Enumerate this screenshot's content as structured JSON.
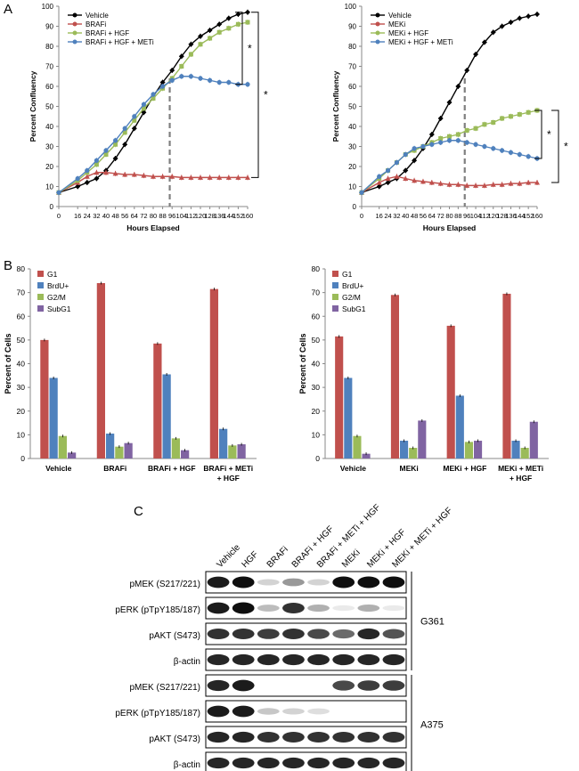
{
  "panels": {
    "a": "A",
    "b": "B",
    "c": "C"
  },
  "colors": {
    "vehicle": "#000000",
    "inhibitor": "#c0504d",
    "inhibitor_hgf": "#9bbb59",
    "triple": "#4f81bd",
    "g1": "#c0504d",
    "brdu": "#4f81bd",
    "g2m": "#9bbb59",
    "subg1": "#8064a2",
    "dash": "#7f7f7f"
  },
  "significance": {
    "marker": "*"
  },
  "chart_data": [
    {
      "type": "line",
      "id": "growth-brafi",
      "xlabel": "Hours Elapsed",
      "ylabel": "Percent Confluency",
      "xlim": [
        0,
        160
      ],
      "ylim": [
        0,
        100
      ],
      "xticks": [
        0,
        16,
        24,
        32,
        40,
        48,
        56,
        64,
        72,
        80,
        88,
        96,
        104,
        112,
        120,
        128,
        136,
        144,
        152,
        160
      ],
      "yticks": [
        0,
        10,
        20,
        30,
        40,
        50,
        60,
        70,
        80,
        90,
        100
      ],
      "xtick_labels": [
        "0",
        "16",
        "24",
        "32",
        "40",
        "48",
        "56",
        "64",
        "72",
        "80",
        "88",
        "96",
        "104",
        "112",
        "120",
        "128",
        "136",
        "144",
        "152",
        "160"
      ],
      "vline_x": 94,
      "series": [
        {
          "name": "Vehicle",
          "key": "vehicle",
          "marker": "diamond",
          "x": [
            0,
            16,
            24,
            32,
            40,
            48,
            56,
            64,
            72,
            80,
            88,
            96,
            104,
            112,
            120,
            128,
            136,
            144,
            152,
            160
          ],
          "y": [
            7,
            10,
            12,
            14,
            18,
            24,
            31,
            39,
            47,
            55,
            62,
            68,
            75,
            81,
            85,
            88,
            91,
            94,
            96,
            97
          ]
        },
        {
          "name": "BRAFi",
          "key": "inhibitor",
          "marker": "triangle",
          "x": [
            0,
            16,
            24,
            32,
            40,
            48,
            56,
            64,
            72,
            80,
            88,
            96,
            104,
            112,
            120,
            128,
            136,
            144,
            152,
            160
          ],
          "y": [
            7,
            12,
            15,
            17,
            17,
            16.5,
            16,
            16,
            15.5,
            15,
            15,
            15,
            14.5,
            14.5,
            14.5,
            14.5,
            14.5,
            14.5,
            14.5,
            14.5
          ]
        },
        {
          "name": "BRAFi + HGF",
          "key": "inhibitor_hgf",
          "marker": "square",
          "x": [
            0,
            16,
            24,
            32,
            40,
            48,
            56,
            64,
            72,
            80,
            88,
            96,
            104,
            112,
            120,
            128,
            136,
            144,
            152,
            160
          ],
          "y": [
            7,
            13,
            17,
            21,
            26,
            31,
            37,
            43,
            49,
            54,
            59,
            64,
            70,
            76,
            81,
            84,
            87,
            89,
            91,
            92
          ]
        },
        {
          "name": "BRAFi + HGF + METi",
          "key": "triple",
          "marker": "circle",
          "x": [
            0,
            16,
            24,
            32,
            40,
            48,
            56,
            64,
            72,
            80,
            88,
            96,
            104,
            112,
            120,
            128,
            136,
            144,
            152,
            160
          ],
          "y": [
            7,
            14,
            18,
            23,
            28,
            33,
            39,
            45,
            51,
            56,
            60,
            63,
            65,
            65,
            64,
            63,
            62,
            62,
            61,
            61
          ]
        }
      ]
    },
    {
      "type": "line",
      "id": "growth-meki",
      "xlabel": "Hours Elapsed",
      "ylabel": "Percent Confluency",
      "xlim": [
        0,
        160
      ],
      "ylim": [
        0,
        100
      ],
      "xticks": [
        0,
        16,
        24,
        32,
        40,
        48,
        56,
        64,
        72,
        80,
        88,
        96,
        104,
        112,
        120,
        128,
        136,
        144,
        152,
        160
      ],
      "yticks": [
        0,
        10,
        20,
        30,
        40,
        50,
        60,
        70,
        80,
        90,
        100
      ],
      "xtick_labels": [
        "0",
        "16",
        "24",
        "32",
        "40",
        "48",
        "56",
        "64",
        "72",
        "80",
        "88",
        "96",
        "104",
        "112",
        "120",
        "128",
        "136",
        "144",
        "152",
        "160"
      ],
      "vline_x": 94,
      "series": [
        {
          "name": "Vehicle",
          "key": "vehicle",
          "marker": "diamond",
          "x": [
            0,
            16,
            24,
            32,
            40,
            48,
            56,
            64,
            72,
            80,
            88,
            96,
            104,
            112,
            120,
            128,
            136,
            144,
            152,
            160
          ],
          "y": [
            7,
            10,
            12,
            14,
            18,
            23,
            29,
            36,
            44,
            52,
            60,
            68,
            76,
            82,
            87,
            90,
            92,
            94,
            95,
            96
          ]
        },
        {
          "name": "MEKi",
          "key": "inhibitor",
          "marker": "triangle",
          "x": [
            0,
            16,
            24,
            32,
            40,
            48,
            56,
            64,
            72,
            80,
            88,
            96,
            104,
            112,
            120,
            128,
            136,
            144,
            152,
            160
          ],
          "y": [
            7,
            12,
            14,
            15,
            14,
            13,
            12.5,
            12,
            11.5,
            11,
            11,
            10.5,
            10.5,
            10.5,
            11,
            11,
            11.5,
            11.5,
            12,
            12
          ]
        },
        {
          "name": "MEKi + HGF",
          "key": "inhibitor_hgf",
          "marker": "square",
          "x": [
            0,
            16,
            24,
            32,
            40,
            48,
            56,
            64,
            72,
            80,
            88,
            96,
            104,
            112,
            120,
            128,
            136,
            144,
            152,
            160
          ],
          "y": [
            7,
            14,
            18,
            22,
            26,
            28,
            30,
            32,
            34,
            35,
            36,
            38,
            39,
            41,
            42,
            44,
            45,
            46,
            47,
            48
          ]
        },
        {
          "name": "MEKi + HGF + METi",
          "key": "triple",
          "marker": "circle",
          "x": [
            0,
            16,
            24,
            32,
            40,
            48,
            56,
            64,
            72,
            80,
            88,
            96,
            104,
            112,
            120,
            128,
            136,
            144,
            152,
            160
          ],
          "y": [
            7,
            15,
            18,
            22,
            26,
            29,
            30,
            31,
            32,
            33,
            33,
            32,
            31,
            30,
            29,
            28,
            27,
            26,
            25,
            24
          ]
        }
      ]
    },
    {
      "type": "bar",
      "id": "cycle-brafi",
      "ylabel": "Percent of Cells",
      "ylim": [
        0,
        80
      ],
      "yticks": [
        0,
        10,
        20,
        30,
        40,
        50,
        60,
        70,
        80
      ],
      "categories": [
        "Vehicle",
        "BRAFi",
        "BRAFi + HGF",
        "BRAFi + METi\n+ HGF"
      ],
      "category_lines": [
        [
          "Vehicle"
        ],
        [
          "BRAFi"
        ],
        [
          "BRAFi + HGF"
        ],
        [
          "BRAFi + METi",
          "+ HGF"
        ]
      ],
      "series": [
        {
          "name": "G1",
          "key": "g1",
          "values": [
            50,
            74,
            48.5,
            71.5
          ]
        },
        {
          "name": "BrdU+",
          "key": "brdu",
          "values": [
            34,
            10.5,
            35.5,
            12.5
          ]
        },
        {
          "name": "G2/M",
          "key": "g2m",
          "values": [
            9.5,
            5,
            8.5,
            5.5
          ]
        },
        {
          "name": "SubG1",
          "key": "subg1",
          "values": [
            2.5,
            6.5,
            3.5,
            6
          ]
        }
      ]
    },
    {
      "type": "bar",
      "id": "cycle-meki",
      "ylabel": "Percent of Cells",
      "ylim": [
        0,
        80
      ],
      "yticks": [
        0,
        10,
        20,
        30,
        40,
        50,
        60,
        70,
        80
      ],
      "categories": [
        "Vehicle",
        "MEKi",
        "MEKi + HGF",
        "MEKi + METi\n+ HGF"
      ],
      "category_lines": [
        [
          "Vehicle"
        ],
        [
          "MEKi"
        ],
        [
          "MEKi + HGF"
        ],
        [
          "MEKi + METi",
          "+ HGF"
        ]
      ],
      "series": [
        {
          "name": "G1",
          "key": "g1",
          "values": [
            51.5,
            69,
            56,
            69.5
          ]
        },
        {
          "name": "BrdU+",
          "key": "brdu",
          "values": [
            34,
            7.5,
            26.5,
            7.5
          ]
        },
        {
          "name": "G2/M",
          "key": "g2m",
          "values": [
            9.5,
            4.5,
            7,
            4.5
          ]
        },
        {
          "name": "SubG1",
          "key": "subg1",
          "values": [
            2,
            16,
            7.5,
            15.5
          ]
        }
      ]
    }
  ],
  "blot": {
    "lanes": [
      "Vehicle",
      "HGF",
      "BRAFi",
      "BRAFi + HGF",
      "BRAFi + METi + HGF",
      "MEKi",
      "MEKi + HGF",
      "MEKi + METi + HGF"
    ],
    "groups": [
      {
        "cell_line": "G361",
        "rows": [
          {
            "label": "pMEK (S217/221)",
            "intensity": [
              0.95,
              1.0,
              0.15,
              0.4,
              0.15,
              1.0,
              1.0,
              1.0
            ]
          },
          {
            "label": "pERK (pTpY185/187)",
            "intensity": [
              0.95,
              1.0,
              0.25,
              0.85,
              0.3,
              0.05,
              0.3,
              0.05
            ]
          },
          {
            "label": "pAKT (S473)",
            "intensity": [
              0.85,
              0.85,
              0.8,
              0.85,
              0.75,
              0.6,
              0.9,
              0.7
            ]
          },
          {
            "label": "β-actin",
            "intensity": [
              0.9,
              0.9,
              0.9,
              0.9,
              0.9,
              0.9,
              0.9,
              0.9
            ]
          }
        ]
      },
      {
        "cell_line": "A375",
        "rows": [
          {
            "label": "pMEK (S217/221)",
            "intensity": [
              0.9,
              0.95,
              0.0,
              0.0,
              0.0,
              0.75,
              0.8,
              0.8
            ]
          },
          {
            "label": "pERK (pTpY185/187)",
            "intensity": [
              0.95,
              0.95,
              0.2,
              0.15,
              0.1,
              0.0,
              0.0,
              0.0
            ]
          },
          {
            "label": "pAKT (S473)",
            "intensity": [
              0.9,
              0.9,
              0.85,
              0.85,
              0.85,
              0.85,
              0.85,
              0.85
            ]
          },
          {
            "label": "β-actin",
            "intensity": [
              0.9,
              0.9,
              0.9,
              0.9,
              0.9,
              0.9,
              0.9,
              0.9
            ]
          }
        ]
      }
    ]
  }
}
